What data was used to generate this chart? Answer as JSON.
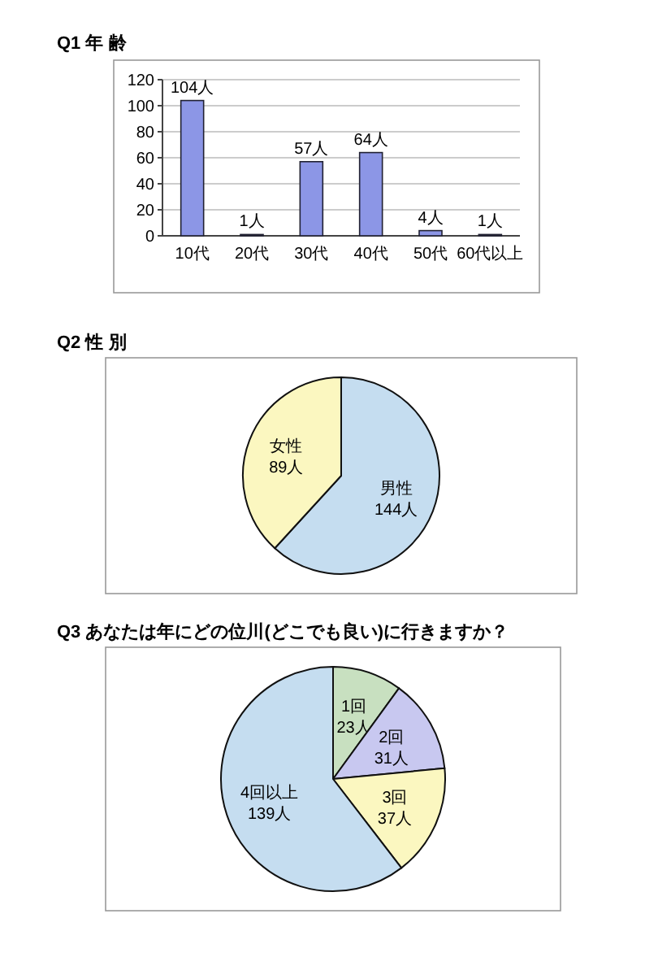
{
  "chart_data": [
    {
      "type": "bar",
      "title": "Q1 年 齢",
      "categories": [
        "10代",
        "20代",
        "30代",
        "40代",
        "50代",
        "60代以上"
      ],
      "values": [
        104,
        1,
        57,
        64,
        4,
        1
      ],
      "value_labels": [
        "104人",
        "1人",
        "57人",
        "64人",
        "4人",
        "1人"
      ],
      "color": "#8c96e6",
      "ylim": [
        0,
        120
      ],
      "yticks": [
        0,
        20,
        40,
        60,
        80,
        100,
        120
      ],
      "grid": "y"
    },
    {
      "type": "pie",
      "title": "Q2 性 別",
      "categories": [
        "男性",
        "女性"
      ],
      "values": [
        144,
        89
      ],
      "value_labels": [
        "144人",
        "89人"
      ],
      "colors": [
        "#c5ddf0",
        "#fbf7c0"
      ]
    },
    {
      "type": "pie",
      "title": "Q3 あなたは年にどの位川(どこでも良い)に行きますか？",
      "categories": [
        "1回",
        "2回",
        "3回",
        "4回以上"
      ],
      "values": [
        23,
        31,
        37,
        139
      ],
      "value_labels": [
        "23人",
        "31人",
        "37人",
        "139人"
      ],
      "colors": [
        "#c8e0c0",
        "#c8c8f0",
        "#fbf7c0",
        "#c5ddf0"
      ]
    }
  ]
}
